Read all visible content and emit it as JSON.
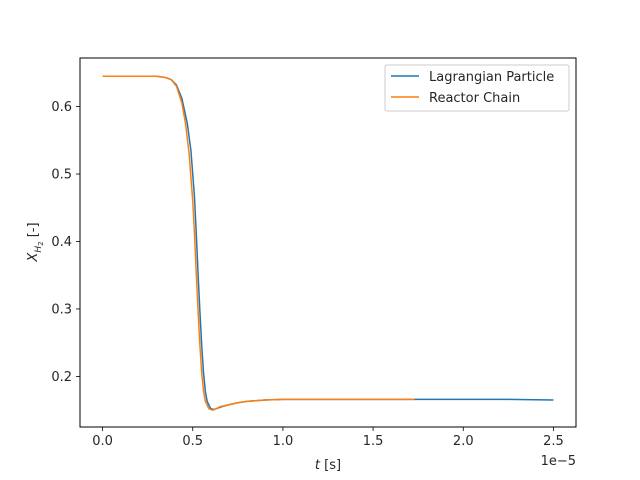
{
  "chart_data": {
    "type": "line",
    "title": "",
    "xlabel": {
      "var": "t",
      "unit": "[s]"
    },
    "ylabel": {
      "var": "X",
      "sub": "H",
      "subsub": "2",
      "unit": "[-]"
    },
    "x_offset_text": "1e−5",
    "xlim": [
      -0.125,
      2.625
    ],
    "ylim": [
      0.125,
      0.672
    ],
    "x_ticks": [
      0.0,
      0.5,
      1.0,
      1.5,
      2.0,
      2.5
    ],
    "x_tick_labels": [
      "0.0",
      "0.5",
      "1.0",
      "1.5",
      "2.0",
      "2.5"
    ],
    "y_ticks": [
      0.2,
      0.3,
      0.4,
      0.5,
      0.6
    ],
    "y_tick_labels": [
      "0.2",
      "0.3",
      "0.4",
      "0.5",
      "0.6"
    ],
    "legend_position": "top-right",
    "series": [
      {
        "name": "Lagrangian Particle",
        "color": "#1f77b4",
        "x": [
          0.0,
          0.2,
          0.3,
          0.35,
          0.38,
          0.41,
          0.44,
          0.47,
          0.49,
          0.51,
          0.52,
          0.53,
          0.54,
          0.55,
          0.56,
          0.57,
          0.58,
          0.6,
          0.62,
          0.64,
          0.66,
          0.7,
          0.75,
          0.8,
          0.9,
          1.0,
          1.2,
          1.5,
          1.75,
          2.0,
          2.25,
          2.5
        ],
        "y": [
          0.645,
          0.645,
          0.645,
          0.643,
          0.64,
          0.632,
          0.612,
          0.575,
          0.535,
          0.465,
          0.41,
          0.35,
          0.295,
          0.245,
          0.205,
          0.178,
          0.163,
          0.152,
          0.151,
          0.153,
          0.155,
          0.158,
          0.161,
          0.163,
          0.165,
          0.166,
          0.166,
          0.166,
          0.166,
          0.166,
          0.166,
          0.165
        ]
      },
      {
        "name": "Reactor Chain",
        "color": "#ff7f0e",
        "x": [
          0.0,
          0.2,
          0.3,
          0.35,
          0.38,
          0.41,
          0.44,
          0.46,
          0.48,
          0.5,
          0.51,
          0.52,
          0.53,
          0.54,
          0.55,
          0.56,
          0.57,
          0.59,
          0.61,
          0.63,
          0.65,
          0.7,
          0.75,
          0.8,
          0.9,
          1.0,
          1.2,
          1.5,
          1.73
        ],
        "y": [
          0.645,
          0.645,
          0.645,
          0.643,
          0.64,
          0.63,
          0.605,
          0.575,
          0.53,
          0.46,
          0.41,
          0.35,
          0.295,
          0.245,
          0.205,
          0.178,
          0.163,
          0.152,
          0.15,
          0.152,
          0.155,
          0.158,
          0.161,
          0.163,
          0.165,
          0.166,
          0.166,
          0.166,
          0.166
        ]
      }
    ]
  }
}
